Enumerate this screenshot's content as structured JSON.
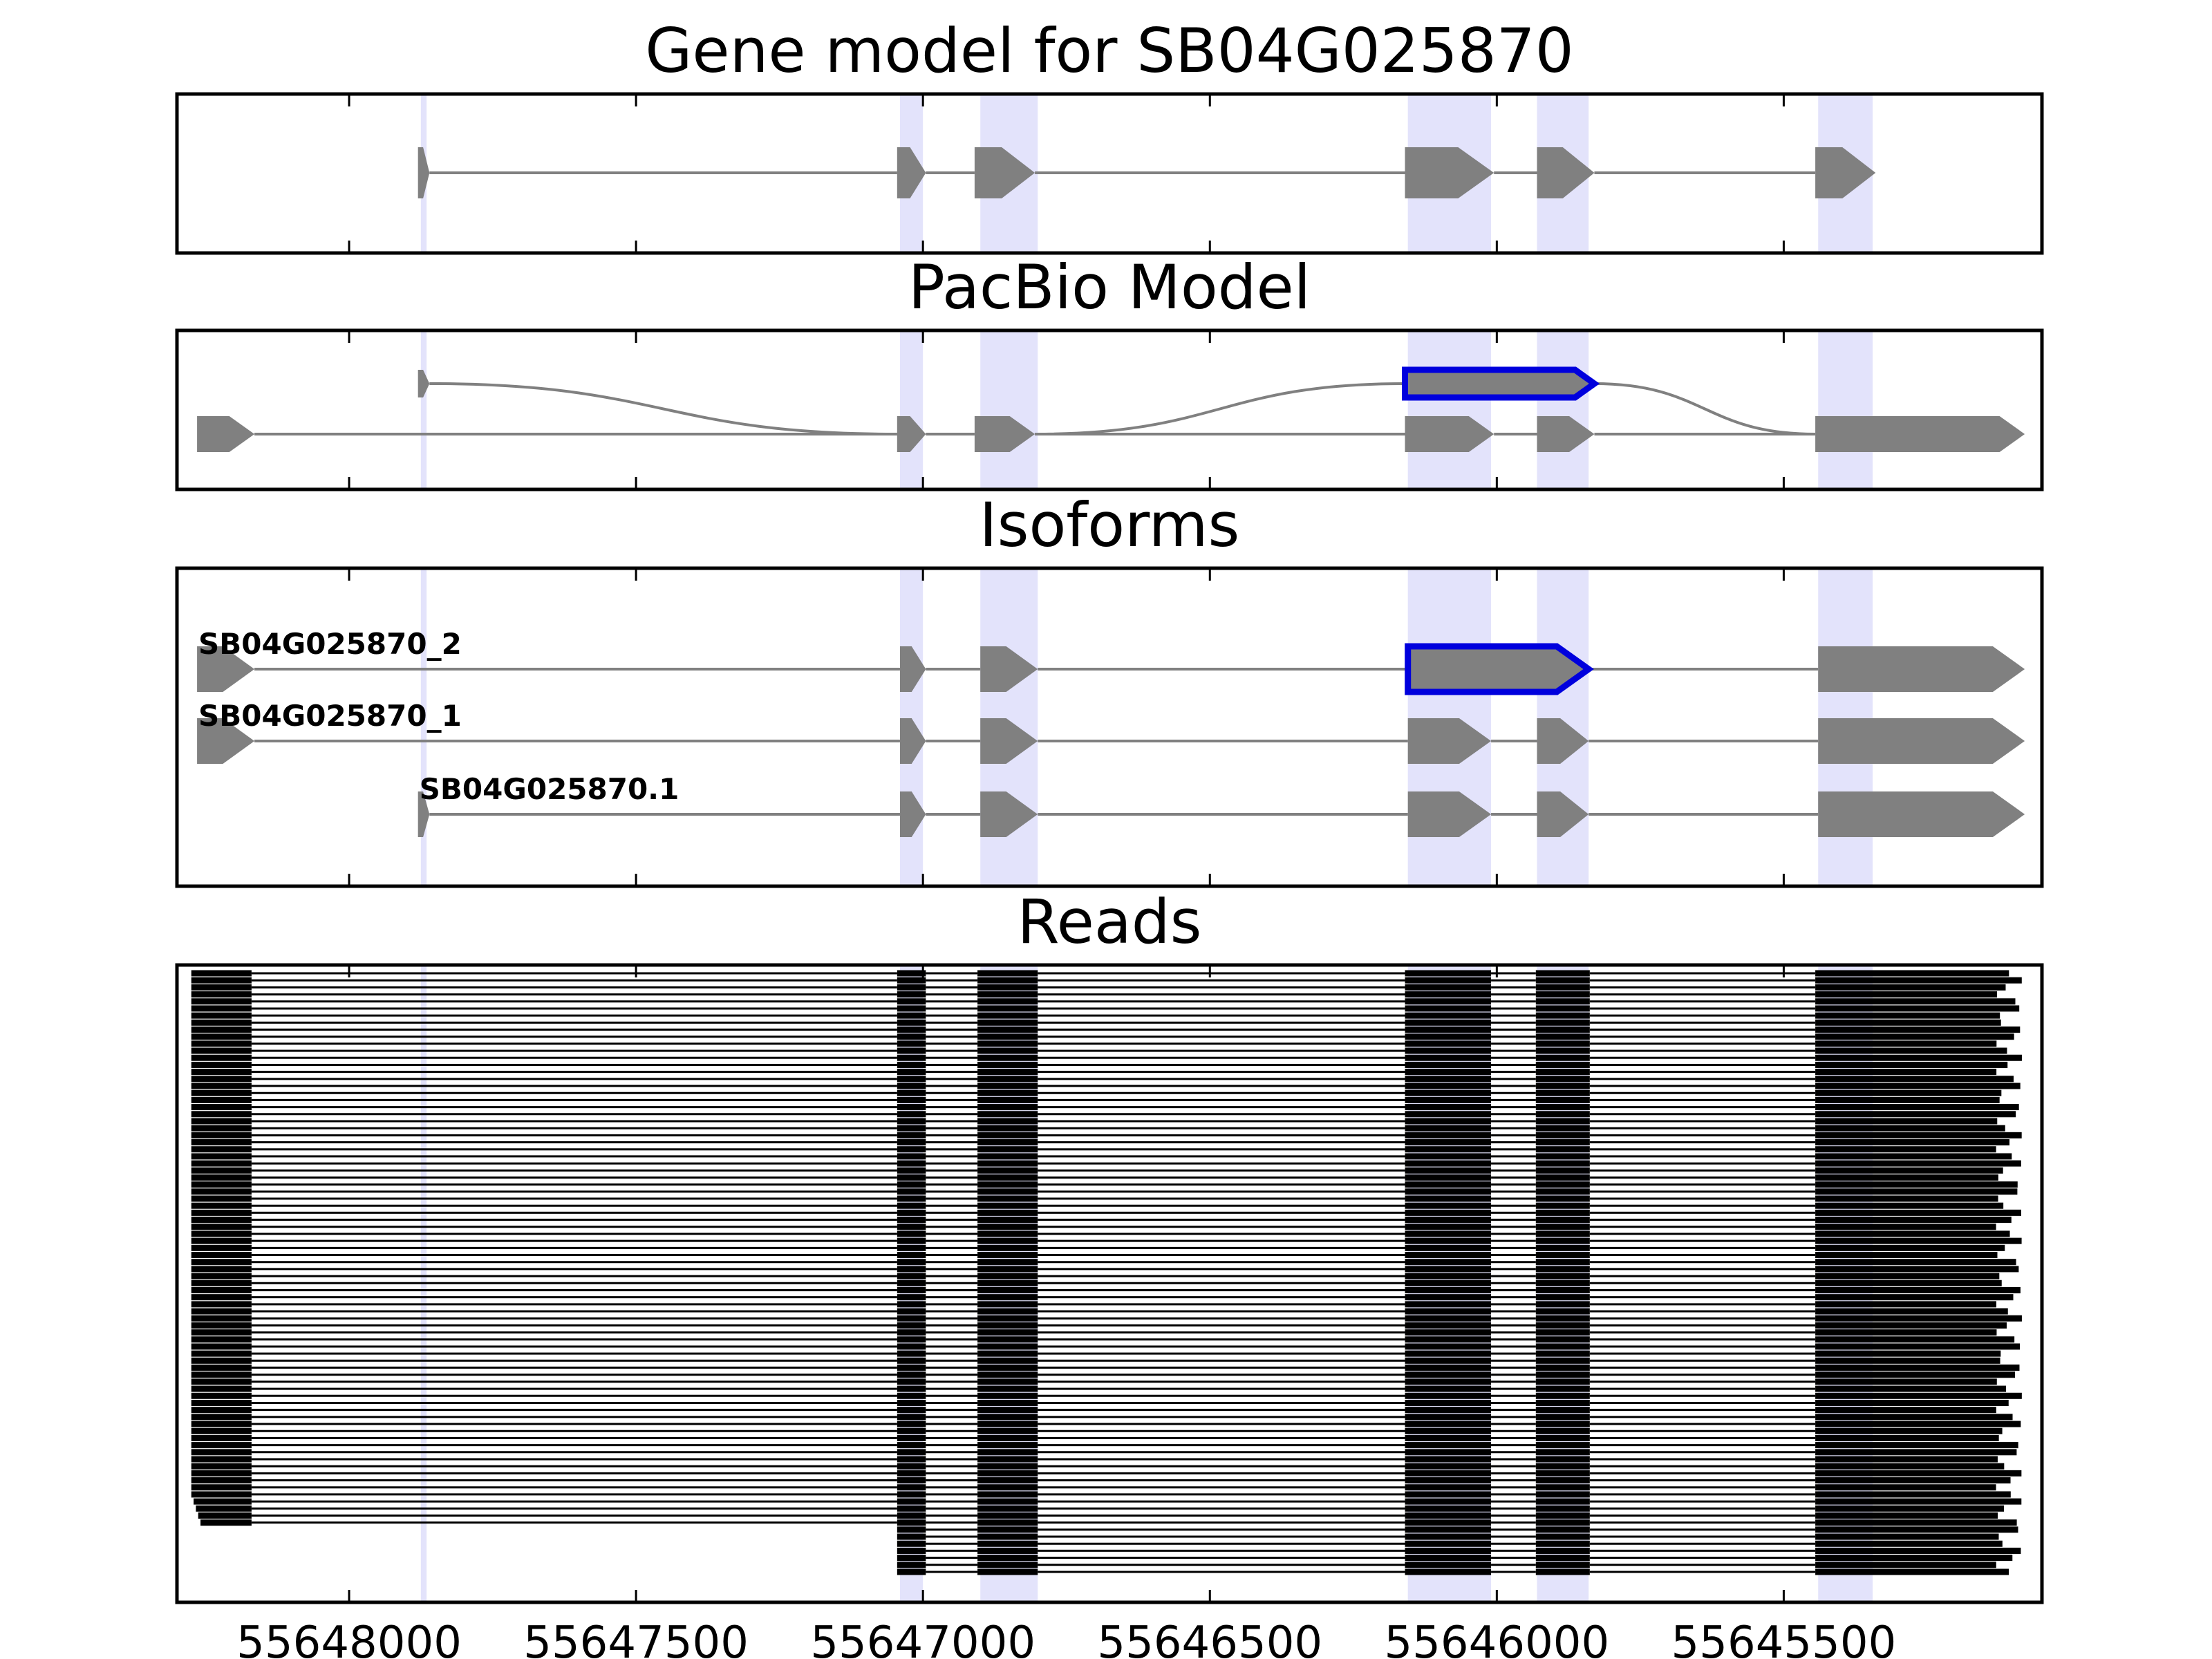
{
  "chart_data": {
    "type": "gene_structure",
    "xlim": [
      55648300,
      55645050
    ],
    "x_ticks": [
      55648000,
      55647500,
      55647000,
      55646500,
      55646000,
      55645500
    ],
    "x_tick_labels": [
      "55648000",
      "55647500",
      "55647000",
      "55646500",
      "55646000",
      "55645500"
    ],
    "highlight_color": "#e3e3fb",
    "exon_color": "#808080",
    "highlight_exon_color": "#0000dd",
    "read_color": "#000000",
    "highlight_regions": [
      [
        55647875,
        55647865
      ],
      [
        55647040,
        55647000
      ],
      [
        55646900,
        55646800
      ],
      [
        55646155,
        55646010
      ],
      [
        55645930,
        55645840
      ],
      [
        55645440,
        55645345
      ]
    ],
    "panels": [
      {
        "title": "Gene model for SB04G025870",
        "transcripts": [
          {
            "label": "",
            "exons": [
              [
                55647880,
                55647860
              ],
              [
                55647045,
                55646995
              ],
              [
                55646910,
                55646805
              ],
              [
                55646160,
                55646005
              ],
              [
                55645930,
                55645830
              ],
              [
                55645445,
                55645340
              ]
            ],
            "highlight_exons": []
          }
        ]
      },
      {
        "title": "PacBio Model",
        "transcripts": [
          {
            "label": "",
            "exons": [
              [
                55647880,
                55647860
              ],
              [
                55646160,
                55645830
              ]
            ],
            "highlight_exons": [
              1
            ]
          },
          {
            "label": "",
            "exons": [
              [
                55648265,
                55648165
              ],
              [
                55647045,
                55646995
              ],
              [
                55646910,
                55646805
              ],
              [
                55646160,
                55646005
              ],
              [
                55645930,
                55645830
              ],
              [
                55645445,
                55645080
              ]
            ],
            "highlight_exons": []
          }
        ]
      },
      {
        "title": "Isoforms",
        "transcripts": [
          {
            "label": "SB04G025870_2",
            "exons": [
              [
                55648265,
                55648165
              ],
              [
                55647040,
                55646995
              ],
              [
                55646900,
                55646800
              ],
              [
                55646155,
                55645840
              ],
              [
                55645440,
                55645080
              ]
            ],
            "highlight_exons": [
              3
            ]
          },
          {
            "label": "SB04G025870_1",
            "exons": [
              [
                55648265,
                55648165
              ],
              [
                55647040,
                55646995
              ],
              [
                55646900,
                55646800
              ],
              [
                55646155,
                55646010
              ],
              [
                55645930,
                55645840
              ],
              [
                55645440,
                55645080
              ]
            ],
            "highlight_exons": []
          },
          {
            "label": "SB04G025870.1",
            "exons": [
              [
                55647880,
                55647860
              ],
              [
                55647040,
                55646995
              ],
              [
                55646900,
                55646800
              ],
              [
                55646155,
                55646010
              ],
              [
                55645930,
                55645840
              ],
              [
                55645440,
                55645080
              ]
            ],
            "highlight_exons": []
          }
        ]
      },
      {
        "title": "Reads",
        "read_count": 86,
        "read_exons": [
          [
            55648275,
            55648170
          ],
          [
            55647045,
            55646995
          ],
          [
            55646905,
            55646800
          ],
          [
            55646160,
            55646010
          ],
          [
            55645932,
            55645838
          ],
          [
            55645445,
            55645130
          ]
        ],
        "read_last_exon_end_range": [
          55645130,
          55645085
        ]
      }
    ]
  }
}
